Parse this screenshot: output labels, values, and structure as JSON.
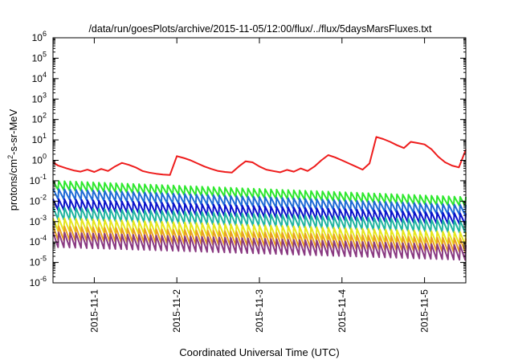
{
  "chart_data": {
    "type": "line",
    "title": "/data/run/goesPlots/archive/2015-11-05/12:00/flux/../flux/5daysMarsFluxes.txt",
    "xlabel": "Coordinated Universal Time (UTC)",
    "ylabel": "protons/cm2-s-sr-MeV",
    "ylabel_parts": {
      "pre": "protons/cm",
      "sup": "2",
      "post": "-s-sr-MeV"
    },
    "x_scale": "time",
    "y_scale": "log",
    "xlim": [
      "2015-10-31T12:00",
      "2015-11-05T12:00"
    ],
    "ylim": [
      1e-06,
      1000000.0
    ],
    "y_ticks": [
      {
        "value": 1000000.0,
        "base": "10",
        "exp": "6"
      },
      {
        "value": 100000.0,
        "base": "10",
        "exp": "5"
      },
      {
        "value": 10000.0,
        "base": "10",
        "exp": "4"
      },
      {
        "value": 1000.0,
        "base": "10",
        "exp": "3"
      },
      {
        "value": 100.0,
        "base": "10",
        "exp": "2"
      },
      {
        "value": 10.0,
        "base": "10",
        "exp": "1"
      },
      {
        "value": 1.0,
        "base": "10",
        "exp": "0"
      },
      {
        "value": 0.1,
        "base": "10",
        "exp": "-1"
      },
      {
        "value": 0.01,
        "base": "10",
        "exp": "-2"
      },
      {
        "value": 0.001,
        "base": "10",
        "exp": "-3"
      },
      {
        "value": 0.0001,
        "base": "10",
        "exp": "-4"
      },
      {
        "value": 1e-05,
        "base": "10",
        "exp": "-5"
      },
      {
        "value": 1e-06,
        "base": "10",
        "exp": "-6"
      }
    ],
    "x_ticks": [
      {
        "value": "2015-11-01T00:00",
        "label": "2015-11-1"
      },
      {
        "value": "2015-11-02T00:00",
        "label": "2015-11-2"
      },
      {
        "value": "2015-11-03T00:00",
        "label": "2015-11-3"
      },
      {
        "value": "2015-11-04T00:00",
        "label": "2015-11-4"
      },
      {
        "value": "2015-11-05T00:00",
        "label": "2015-11-5"
      }
    ],
    "grid": false,
    "legend": "none",
    "series": [
      {
        "color": "#ee1c1c",
        "x": [
          "2015-10-31T12:00",
          "2015-10-31T13:30",
          "2015-10-31T16:00",
          "2015-10-31T18:00",
          "2015-10-31T20:00",
          "2015-10-31T22:00",
          "2015-11-01T00:00",
          "2015-11-01T02:00",
          "2015-11-01T04:00",
          "2015-11-01T06:00",
          "2015-11-01T08:00",
          "2015-11-01T10:00",
          "2015-11-01T12:00",
          "2015-11-01T14:00",
          "2015-11-01T16:00",
          "2015-11-01T18:00",
          "2015-11-01T20:00",
          "2015-11-01T22:00",
          "2015-11-02T00:00",
          "2015-11-02T02:00",
          "2015-11-02T04:00",
          "2015-11-02T06:00",
          "2015-11-02T08:00",
          "2015-11-02T10:00",
          "2015-11-02T12:00",
          "2015-11-02T14:00",
          "2015-11-02T16:00",
          "2015-11-02T18:00",
          "2015-11-02T20:00",
          "2015-11-02T22:00",
          "2015-11-03T00:00",
          "2015-11-03T02:00",
          "2015-11-03T04:00",
          "2015-11-03T06:00",
          "2015-11-03T08:00",
          "2015-11-03T10:00",
          "2015-11-03T12:00",
          "2015-11-03T14:00",
          "2015-11-03T16:00",
          "2015-11-03T18:00",
          "2015-11-03T20:00",
          "2015-11-03T22:00",
          "2015-11-04T00:00",
          "2015-11-04T02:00",
          "2015-11-04T04:00",
          "2015-11-04T06:00",
          "2015-11-04T08:00",
          "2015-11-04T10:00",
          "2015-11-04T12:00",
          "2015-11-04T14:00",
          "2015-11-04T16:00",
          "2015-11-04T18:00",
          "2015-11-04T20:00",
          "2015-11-04T22:00",
          "2015-11-05T00:00",
          "2015-11-05T02:00",
          "2015-11-05T04:00",
          "2015-11-05T06:00",
          "2015-11-05T08:00",
          "2015-11-05T10:00",
          "2015-11-05T12:00"
        ],
        "values": [
          0.8,
          0.55,
          0.4,
          0.32,
          0.28,
          0.35,
          0.27,
          0.38,
          0.3,
          0.5,
          0.75,
          0.6,
          0.45,
          0.3,
          0.25,
          0.22,
          0.2,
          0.19,
          1.6,
          1.3,
          1.0,
          0.7,
          0.5,
          0.38,
          0.3,
          0.27,
          0.25,
          0.5,
          0.9,
          0.8,
          0.5,
          0.35,
          0.3,
          0.26,
          0.34,
          0.28,
          0.4,
          0.3,
          0.5,
          1.0,
          1.8,
          1.4,
          1.0,
          0.7,
          0.5,
          0.35,
          0.7,
          14,
          11,
          8,
          5.5,
          4,
          8,
          7,
          6,
          3.5,
          1.5,
          0.8,
          0.55,
          0.45,
          3.3
        ]
      },
      {
        "color": "#2ee82e",
        "x": [
          "2015-10-31T12:00",
          "2015-11-05T12:00"
        ],
        "values": [
          0.1,
          0.016
        ]
      },
      {
        "color": "#1f6bd6",
        "x": [
          "2015-10-31T12:00",
          "2015-11-05T12:00"
        ],
        "values": [
          0.04,
          0.0065
        ]
      },
      {
        "color": "#0a12cc",
        "x": [
          "2015-10-31T12:00",
          "2015-11-05T12:00"
        ],
        "values": [
          0.013,
          0.0025
        ]
      },
      {
        "color": "#21b5a0",
        "x": [
          "2015-10-31T12:00",
          "2015-11-05T12:00"
        ],
        "values": [
          0.005,
          0.0011
        ]
      },
      {
        "color": "#e6e61c",
        "x": [
          "2015-10-31T12:00",
          "2015-11-05T12:00"
        ],
        "values": [
          0.0015,
          0.0003
        ]
      },
      {
        "color": "#eaa022",
        "x": [
          "2015-10-31T12:00",
          "2015-11-05T12:00"
        ],
        "values": [
          0.0006,
          0.00015
        ]
      },
      {
        "color": "#8a3a82",
        "x": [
          "2015-10-31T12:00",
          "2015-11-05T12:00"
        ],
        "values": [
          0.0003,
          7e-05
        ]
      }
    ]
  }
}
